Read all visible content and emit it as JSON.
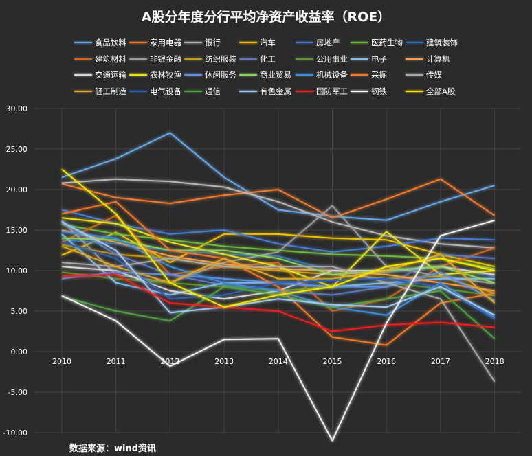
{
  "chart_data": {
    "type": "line",
    "title": "A股分年度分行平均净资产收益率（ROE）",
    "source": "数据来源：wind资讯",
    "categories": [
      "2010",
      "2011",
      "2012",
      "2013",
      "2014",
      "2015",
      "2016",
      "2017",
      "2018"
    ],
    "ylim": [
      -10,
      30
    ],
    "yticks": [
      "30.00",
      "25.00",
      "20.00",
      "15.00",
      "10.00",
      "5.00",
      "0.00",
      "-5.00",
      "-10.00"
    ],
    "grid": true,
    "legend_position": "top",
    "background": "#2b2b2b",
    "series": [
      {
        "name": "食品饮料",
        "color": "#6aa8e8",
        "values": [
          21.5,
          23.8,
          27.0,
          21.5,
          17.5,
          16.7,
          16.2,
          18.5,
          20.5
        ]
      },
      {
        "name": "家用电器",
        "color": "#f07c30",
        "values": [
          20.7,
          19.0,
          18.3,
          19.3,
          20.0,
          16.5,
          18.8,
          21.3,
          16.8
        ]
      },
      {
        "name": "银行",
        "color": "#b8b8b8",
        "values": [
          20.8,
          21.3,
          21.0,
          20.3,
          18.5,
          16.0,
          14.3,
          13.3,
          12.8
        ]
      },
      {
        "name": "汽车",
        "color": "#f2c200",
        "values": [
          11.9,
          14.7,
          11.0,
          14.5,
          14.5,
          14.0,
          13.8,
          12.0,
          10.5
        ]
      },
      {
        "name": "房地产",
        "color": "#4a7bd0",
        "values": [
          17.5,
          15.8,
          14.5,
          15.0,
          13.3,
          12.3,
          13.0,
          14.0,
          13.8
        ]
      },
      {
        "name": "医药生物",
        "color": "#70b840",
        "values": [
          15.7,
          14.5,
          13.8,
          13.0,
          12.5,
          12.0,
          11.8,
          11.5,
          10.2
        ]
      },
      {
        "name": "建筑装饰",
        "color": "#2e6fb8",
        "values": [
          13.8,
          13.3,
          12.5,
          12.0,
          11.8,
          10.0,
          9.8,
          10.5,
          9.3
        ]
      },
      {
        "name": "建筑材料",
        "color": "#d0661e",
        "values": [
          13.5,
          16.8,
          9.5,
          10.5,
          11.0,
          5.0,
          6.5,
          10.5,
          12.8
        ]
      },
      {
        "name": "非银金融",
        "color": "#9c9c9c",
        "values": [
          16.2,
          9.5,
          8.5,
          11.0,
          12.3,
          18.0,
          10.5,
          9.3,
          8.4
        ]
      },
      {
        "name": "纺织服装",
        "color": "#c89a10",
        "values": [
          13.2,
          12.0,
          11.5,
          10.5,
          10.0,
          9.5,
          9.0,
          9.3,
          7.2
        ]
      },
      {
        "name": "化工",
        "color": "#5a78c0",
        "values": [
          16.0,
          12.0,
          9.5,
          8.2,
          7.5,
          7.0,
          8.0,
          12.0,
          11.5
        ]
      },
      {
        "name": "公用事业",
        "color": "#5e9430",
        "values": [
          9.8,
          9.0,
          8.5,
          8.0,
          7.5,
          8.0,
          8.5,
          7.8,
          6.9
        ]
      },
      {
        "name": "电子",
        "color": "#80c0f0",
        "values": [
          14.5,
          8.5,
          7.0,
          8.5,
          8.5,
          8.0,
          8.5,
          9.0,
          9.0
        ]
      },
      {
        "name": "计算机",
        "color": "#f5a050",
        "values": [
          15.0,
          13.5,
          11.8,
          10.8,
          10.2,
          10.0,
          9.5,
          8.5,
          7.5
        ]
      },
      {
        "name": "交通运输",
        "color": "#d8d8d8",
        "values": [
          10.5,
          10.0,
          7.5,
          6.5,
          7.5,
          10.0,
          10.0,
          10.5,
          9.5
        ]
      },
      {
        "name": "农林牧渔",
        "color": "#e8e020",
        "values": [
          16.5,
          15.8,
          13.5,
          12.0,
          10.5,
          8.0,
          14.8,
          9.5,
          10.0
        ]
      },
      {
        "name": "休闲服务",
        "color": "#6090e0",
        "values": [
          9.0,
          9.8,
          9.5,
          9.0,
          8.5,
          8.0,
          8.0,
          9.8,
          6.3
        ]
      },
      {
        "name": "商业贸易",
        "color": "#8cd060",
        "values": [
          14.0,
          13.8,
          12.5,
          12.5,
          11.5,
          9.5,
          10.0,
          10.5,
          8.5
        ]
      },
      {
        "name": "机械设备",
        "color": "#3c8cd8",
        "values": [
          14.8,
          14.0,
          10.5,
          8.5,
          7.5,
          5.5,
          4.5,
          8.5,
          4.2
        ]
      },
      {
        "name": "采掘",
        "color": "#f07828",
        "values": [
          17.0,
          18.5,
          12.5,
          11.5,
          8.0,
          1.8,
          0.8,
          6.0,
          7.2
        ]
      },
      {
        "name": "传媒",
        "color": "#a8a8a8",
        "values": [
          11.0,
          10.5,
          11.5,
          10.5,
          10.5,
          10.5,
          8.5,
          6.5,
          -3.7
        ]
      },
      {
        "name": "轻工制造",
        "color": "#e0a820",
        "values": [
          13.0,
          10.5,
          8.5,
          11.5,
          9.0,
          9.0,
          10.0,
          12.0,
          6.0
        ]
      },
      {
        "name": "电气设备",
        "color": "#3060b0",
        "values": [
          13.5,
          11.5,
          6.5,
          7.0,
          8.5,
          8.8,
          9.0,
          8.0,
          4.0
        ]
      },
      {
        "name": "通信",
        "color": "#4fa040",
        "values": [
          6.8,
          5.0,
          3.8,
          8.0,
          7.0,
          5.5,
          6.5,
          7.5,
          1.6
        ]
      },
      {
        "name": "有色金属",
        "color": "#a0c8f0",
        "values": [
          16.0,
          12.5,
          4.8,
          5.5,
          6.5,
          5.8,
          5.5,
          8.0,
          4.5
        ]
      },
      {
        "name": "国防军工",
        "color": "#e82020",
        "values": [
          9.3,
          9.5,
          6.0,
          5.5,
          5.0,
          2.5,
          3.3,
          3.6,
          3.0
        ]
      },
      {
        "name": "钢铁",
        "color": "#f0f0f0",
        "values": [
          6.9,
          3.8,
          -1.8,
          1.5,
          1.6,
          -11.0,
          3.5,
          14.3,
          16.2
        ]
      },
      {
        "name": "全部A股",
        "color": "#f5e600",
        "values": [
          22.5,
          17.0,
          8.5,
          5.5,
          7.0,
          8.0,
          10.5,
          11.5,
          10.0
        ]
      }
    ]
  }
}
